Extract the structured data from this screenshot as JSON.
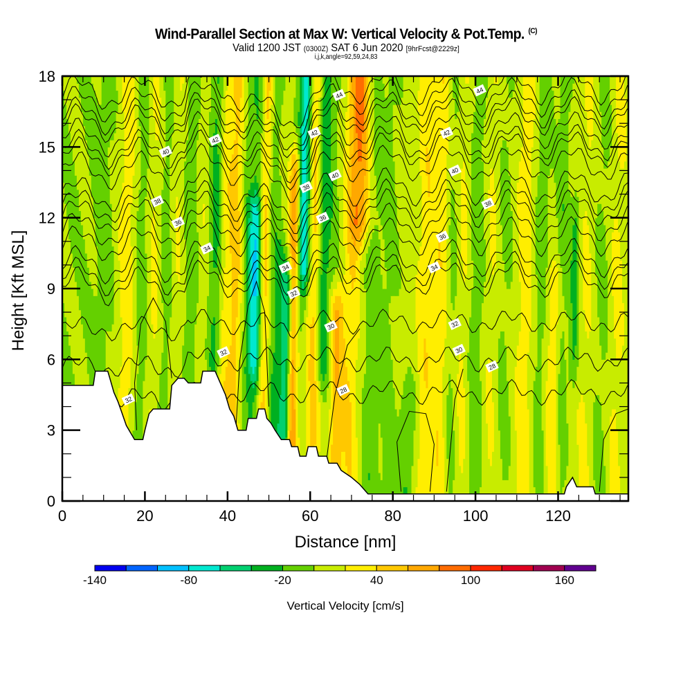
{
  "header": {
    "title": "Wind-Parallel Section at Max W: Vertical Velocity & Pot.Temp.",
    "title_mark": "(C)",
    "valid_prefix": "Valid 1200 JST",
    "valid_utc": "(0300Z)",
    "valid_date": "SAT 6 Jun 2020",
    "forecast": "[9hrFcst@2229z]",
    "indices": "i,j,k,angle=92,59,24,83"
  },
  "chart_data": {
    "type": "heatmap",
    "title": "Wind-Parallel Section at Max W: Vertical Velocity & Pot.Temp.",
    "xlabel": "Distance [nm]",
    "ylabel": "Height [Kft MSL]",
    "xlim": [
      0,
      137
    ],
    "ylim": [
      0,
      18
    ],
    "xticks": [
      0,
      20,
      40,
      60,
      80,
      100,
      120
    ],
    "xticks_minor_step": 5,
    "yticks": [
      0,
      3,
      6,
      9,
      12,
      15,
      18
    ],
    "yticks_minor_step": 1,
    "colorbar": {
      "title": "Vertical Velocity [cm/s]",
      "bounds": [
        -140,
        -120,
        -100,
        -80,
        -60,
        -40,
        -20,
        0,
        20,
        40,
        60,
        80,
        100,
        120,
        140,
        160,
        180
      ],
      "tick_labels": [
        "-140",
        "-80",
        "-20",
        "40",
        "100",
        "160"
      ],
      "tick_values": [
        -140,
        -80,
        -20,
        40,
        100,
        160
      ],
      "colors": [
        "#0000f0",
        "#0064ff",
        "#00c0ff",
        "#00e8d0",
        "#00d070",
        "#00b020",
        "#64d000",
        "#c8ec00",
        "#ffee00",
        "#ffc800",
        "#ffa800",
        "#ff6c00",
        "#ff2800",
        "#e00020",
        "#a00050",
        "#600090"
      ]
    },
    "contour_field": "Potential Temperature",
    "contour_levels": [
      28,
      30,
      32,
      34,
      36,
      38,
      40,
      42,
      44
    ],
    "contour_labels": [
      {
        "text": "44",
        "x": 67,
        "y": 17.2
      },
      {
        "text": "44",
        "x": 101,
        "y": 17.4
      },
      {
        "text": "42",
        "x": 37,
        "y": 15.3
      },
      {
        "text": "42",
        "x": 61,
        "y": 15.6
      },
      {
        "text": "42",
        "x": 93,
        "y": 15.6
      },
      {
        "text": "40",
        "x": 25,
        "y": 14.8
      },
      {
        "text": "40",
        "x": 66,
        "y": 13.8
      },
      {
        "text": "40",
        "x": 95,
        "y": 14.0
      },
      {
        "text": "38",
        "x": 23,
        "y": 12.7
      },
      {
        "text": "38",
        "x": 59,
        "y": 13.3
      },
      {
        "text": "38",
        "x": 103,
        "y": 12.6
      },
      {
        "text": "36",
        "x": 28,
        "y": 11.8
      },
      {
        "text": "36",
        "x": 63,
        "y": 12.0
      },
      {
        "text": "36",
        "x": 92,
        "y": 11.2
      },
      {
        "text": "34",
        "x": 35,
        "y": 10.7
      },
      {
        "text": "34",
        "x": 54,
        "y": 9.9
      },
      {
        "text": "34",
        "x": 90,
        "y": 9.9
      },
      {
        "text": "32",
        "x": 56,
        "y": 8.8
      },
      {
        "text": "32",
        "x": 95,
        "y": 7.5
      },
      {
        "text": "32",
        "x": 39,
        "y": 6.3
      },
      {
        "text": "32",
        "x": 16,
        "y": 4.3
      },
      {
        "text": "30",
        "x": 65,
        "y": 7.4
      },
      {
        "text": "30",
        "x": 96,
        "y": 6.4
      },
      {
        "text": "28",
        "x": 104,
        "y": 5.7
      },
      {
        "text": "28",
        "x": 68,
        "y": 4.7
      }
    ],
    "terrain_kft": [
      {
        "x": 0,
        "h": 4.9
      },
      {
        "x": 7.5,
        "h": 4.9
      },
      {
        "x": 8,
        "h": 5.5
      },
      {
        "x": 11,
        "h": 5.5
      },
      {
        "x": 11.5,
        "h": 5.2
      },
      {
        "x": 12.5,
        "h": 4.6
      },
      {
        "x": 13.5,
        "h": 4.2
      },
      {
        "x": 14.5,
        "h": 3.7
      },
      {
        "x": 15.5,
        "h": 3.2
      },
      {
        "x": 16.5,
        "h": 2.9
      },
      {
        "x": 17.5,
        "h": 2.6
      },
      {
        "x": 19.5,
        "h": 2.6
      },
      {
        "x": 20,
        "h": 3.0
      },
      {
        "x": 21,
        "h": 3.7
      },
      {
        "x": 22,
        "h": 3.9
      },
      {
        "x": 26,
        "h": 3.9
      },
      {
        "x": 26.5,
        "h": 4.9
      },
      {
        "x": 28,
        "h": 5.2
      },
      {
        "x": 29.5,
        "h": 5.2
      },
      {
        "x": 30.5,
        "h": 5.0
      },
      {
        "x": 33.5,
        "h": 5.0
      },
      {
        "x": 34,
        "h": 5.5
      },
      {
        "x": 37,
        "h": 5.5
      },
      {
        "x": 38.5,
        "h": 4.9
      },
      {
        "x": 39.5,
        "h": 4.5
      },
      {
        "x": 40.5,
        "h": 3.9
      },
      {
        "x": 41.5,
        "h": 3.6
      },
      {
        "x": 42.5,
        "h": 3.0
      },
      {
        "x": 44.5,
        "h": 3.0
      },
      {
        "x": 45,
        "h": 3.5
      },
      {
        "x": 47,
        "h": 3.5
      },
      {
        "x": 47.5,
        "h": 3.9
      },
      {
        "x": 49,
        "h": 3.9
      },
      {
        "x": 49.5,
        "h": 3.5
      },
      {
        "x": 50.5,
        "h": 3.3
      },
      {
        "x": 51.5,
        "h": 3.0
      },
      {
        "x": 53,
        "h": 2.6
      },
      {
        "x": 55,
        "h": 2.6
      },
      {
        "x": 55.5,
        "h": 2.3
      },
      {
        "x": 57,
        "h": 2.3
      },
      {
        "x": 57.5,
        "h": 1.9
      },
      {
        "x": 59,
        "h": 1.9
      },
      {
        "x": 59.5,
        "h": 2.3
      },
      {
        "x": 61.5,
        "h": 2.3
      },
      {
        "x": 62,
        "h": 1.9
      },
      {
        "x": 64,
        "h": 1.9
      },
      {
        "x": 64.5,
        "h": 1.6
      },
      {
        "x": 66.5,
        "h": 1.6
      },
      {
        "x": 67.5,
        "h": 1.3
      },
      {
        "x": 70,
        "h": 1.0
      },
      {
        "x": 72,
        "h": 0.7
      },
      {
        "x": 74,
        "h": 0.3
      },
      {
        "x": 121.5,
        "h": 0.3
      },
      {
        "x": 122,
        "h": 0.6
      },
      {
        "x": 123.5,
        "h": 1.0
      },
      {
        "x": 124.5,
        "h": 0.6
      },
      {
        "x": 128.5,
        "h": 0.6
      },
      {
        "x": 129,
        "h": 0.3
      },
      {
        "x": 137,
        "h": 0.3
      }
    ]
  }
}
